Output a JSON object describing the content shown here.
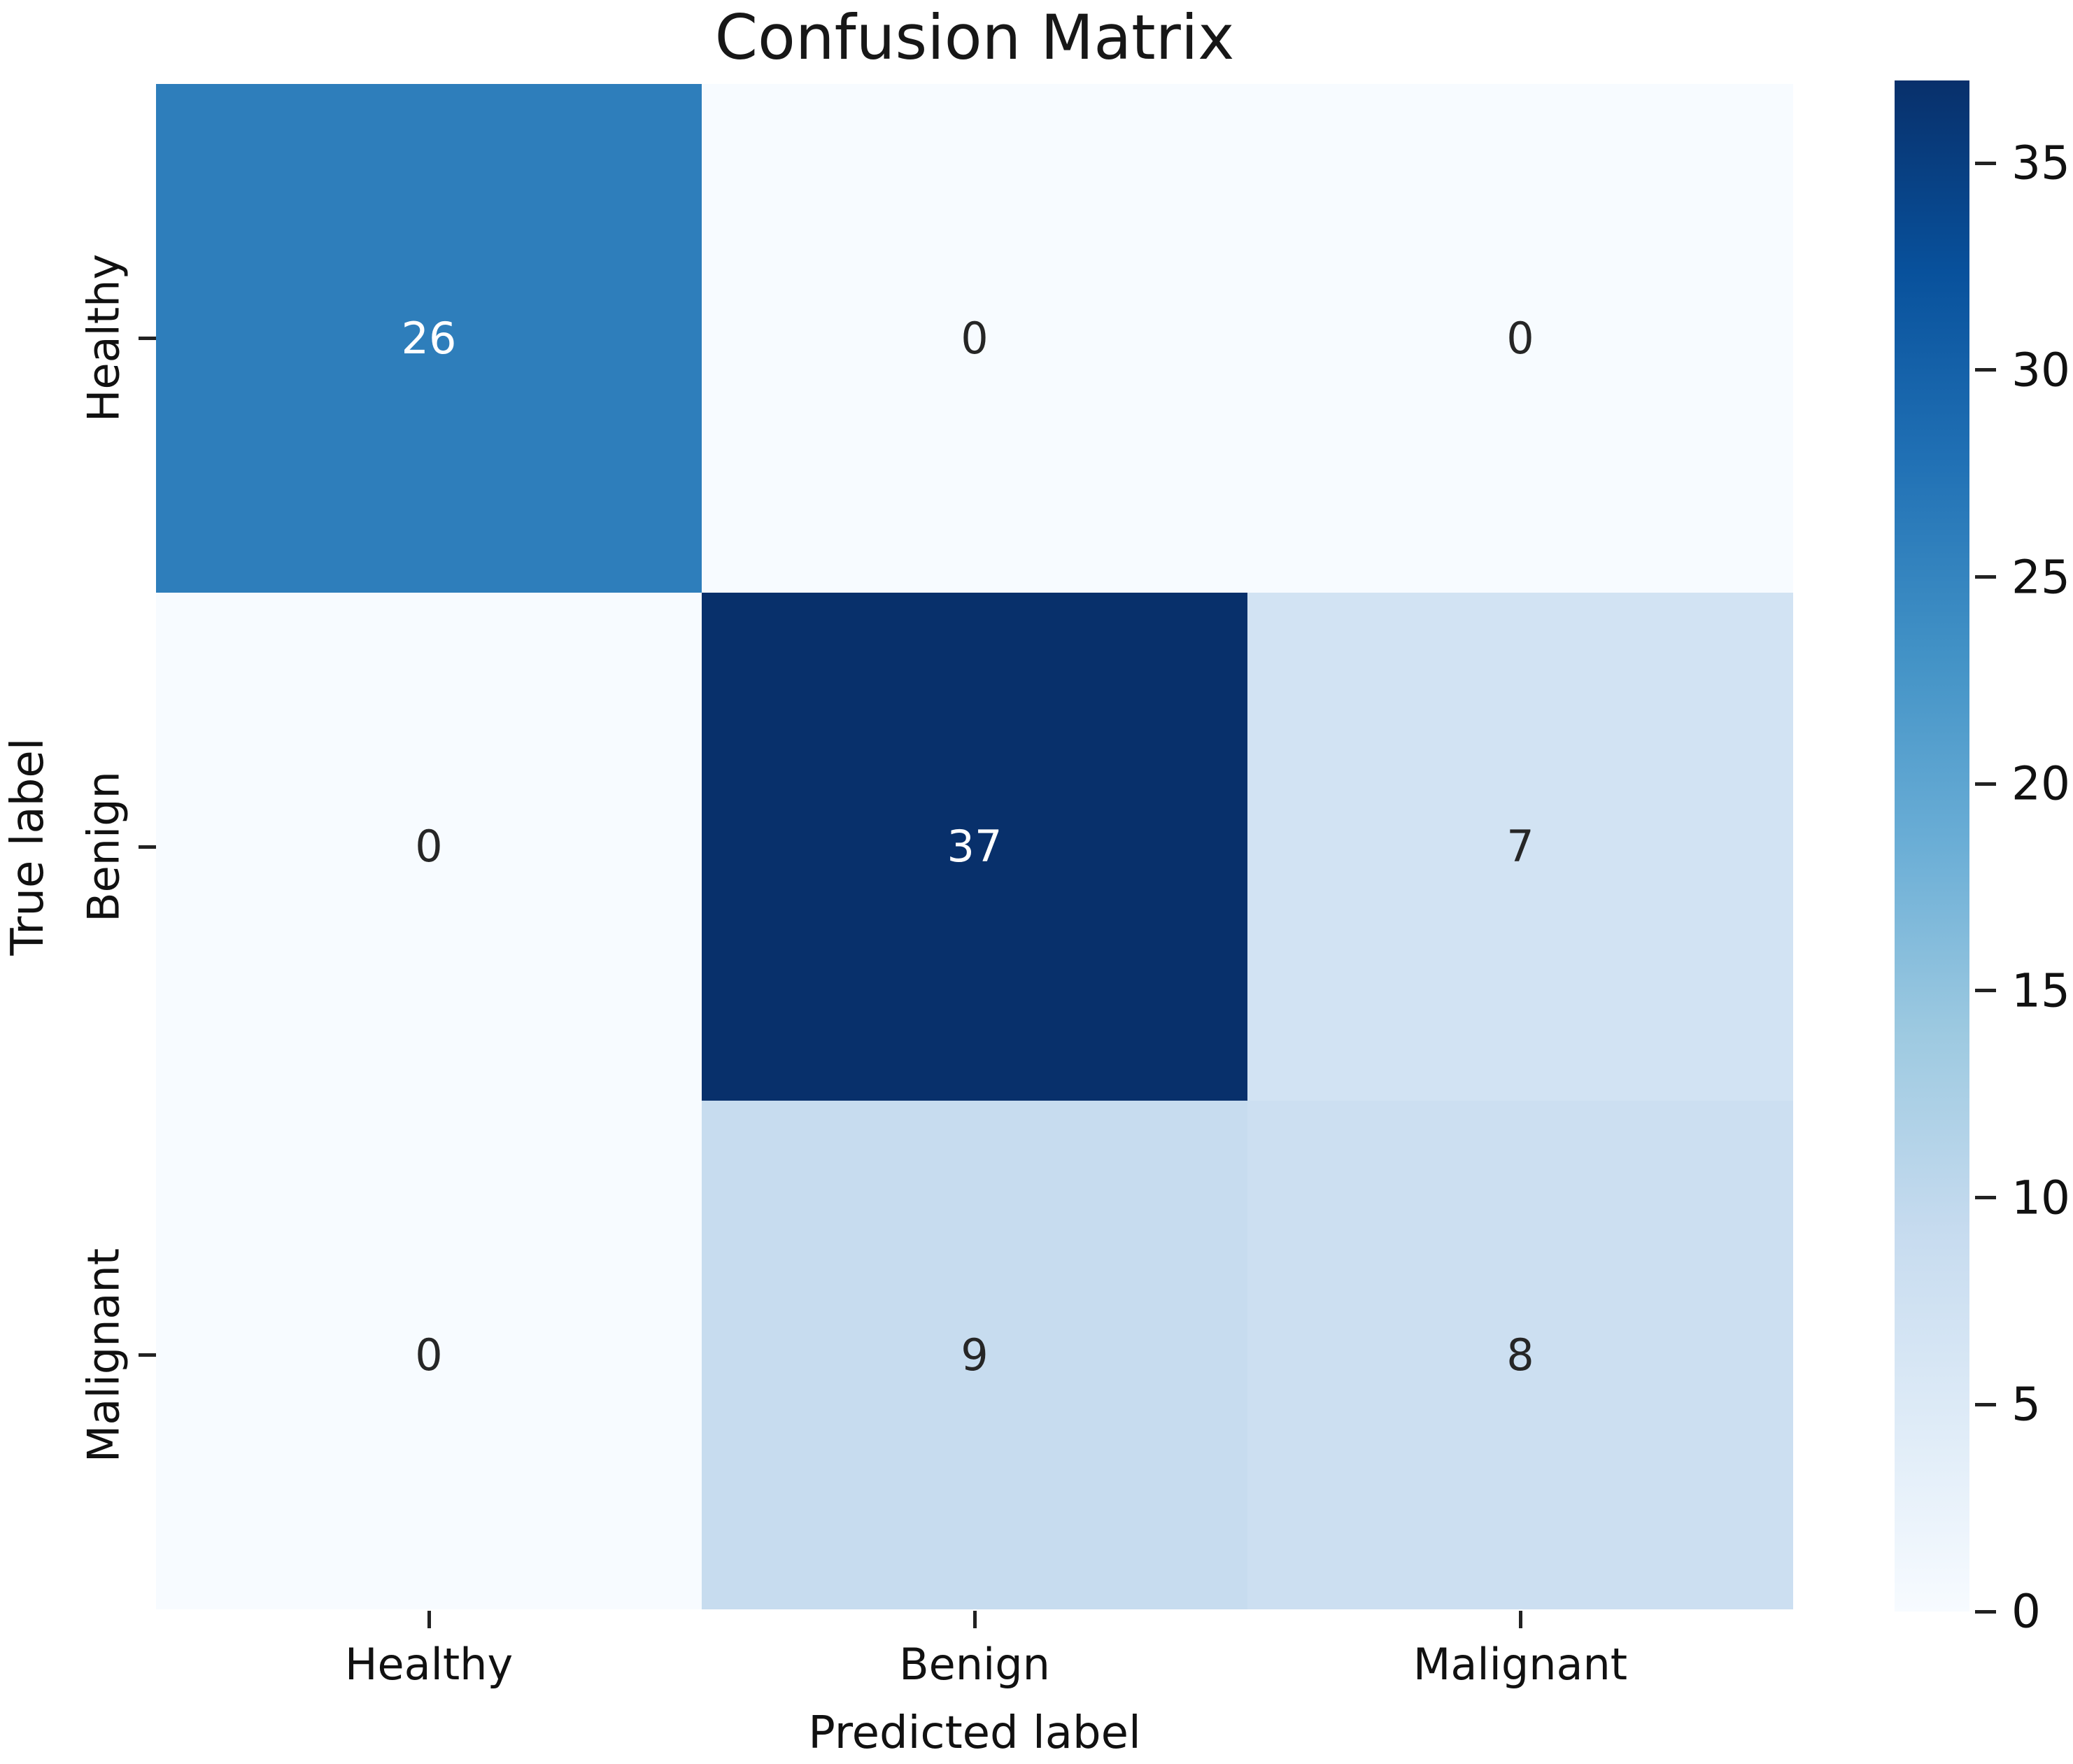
{
  "title": "Confusion Matrix",
  "chart_data": {
    "type": "heatmap",
    "title": "Confusion Matrix",
    "xlabel": "Predicted label",
    "ylabel": "True label",
    "x_categories": [
      "Healthy",
      "Benign",
      "Malignant"
    ],
    "y_categories": [
      "Healthy",
      "Benign",
      "Malignant"
    ],
    "matrix": [
      [
        26,
        0,
        0
      ],
      [
        0,
        37,
        7
      ],
      [
        0,
        9,
        8
      ]
    ],
    "vmin": 0,
    "vmax": 37,
    "colormap": "Blues",
    "legend_position": "right-colorbar",
    "grid": false,
    "colorbar_ticks": [
      0,
      5,
      10,
      15,
      20,
      25,
      30,
      35
    ],
    "cell_colors": [
      [
        "#2e7ebb",
        "#f7fbff",
        "#f7fbff"
      ],
      [
        "#f7fbff",
        "#08306b",
        "#d2e3f3"
      ],
      [
        "#f7fbff",
        "#c7dcef",
        "#ccdff1"
      ]
    ],
    "cell_text_colors": [
      [
        "#ffffff",
        "#262626",
        "#262626"
      ],
      [
        "#262626",
        "#ffffff",
        "#262626"
      ],
      [
        "#262626",
        "#262626",
        "#262626"
      ]
    ],
    "colorbar_gradient_bottom_to_top": [
      "#f7fbff",
      "#deebf7",
      "#c6dbef",
      "#9ecae1",
      "#6baed6",
      "#4292c6",
      "#2171b5",
      "#08519c",
      "#08306b"
    ]
  },
  "colors": {
    "background": "#ffffff",
    "title_text": "#171717",
    "tick_text": "#111111",
    "tick_mark": "#222222",
    "annotation_light": "#ffffff",
    "annotation_dark": "#262626"
  }
}
